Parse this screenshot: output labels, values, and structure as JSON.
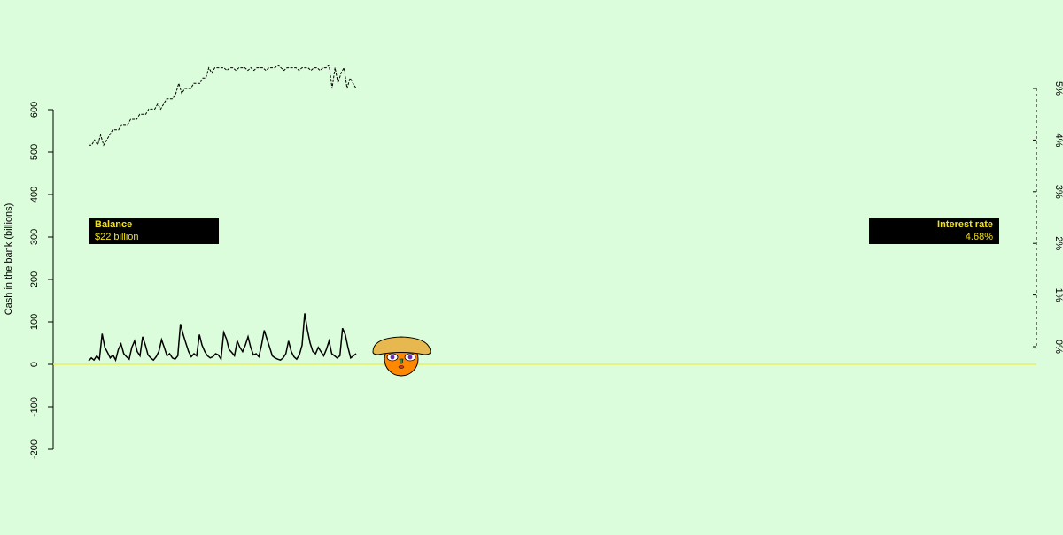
{
  "chart_data": {
    "type": "line",
    "ylabel": "Cash in the bank (billions)",
    "ylim": [
      -200,
      600
    ],
    "yticks": [
      -200,
      -100,
      0,
      100,
      200,
      300,
      400,
      500,
      600
    ],
    "y2lim": [
      0,
      5
    ],
    "y2ticks": [
      "0%",
      "1%",
      "2%",
      "3%",
      "4%",
      "5%"
    ],
    "grid": false,
    "series": [
      {
        "style": "solid",
        "axis": "left",
        "values": [
          8,
          15,
          10,
          20,
          12,
          72,
          40,
          28,
          15,
          22,
          10,
          35,
          48,
          25,
          18,
          12,
          40,
          55,
          30,
          20,
          65,
          45,
          22,
          15,
          10,
          18,
          30,
          58,
          40,
          20,
          25,
          15,
          12,
          20,
          95,
          70,
          50,
          30,
          18,
          25,
          20,
          70,
          45,
          30,
          20,
          15,
          18,
          25,
          22,
          12,
          75,
          60,
          35,
          28,
          20,
          55,
          40,
          30,
          45,
          65,
          40,
          22,
          25,
          18,
          45,
          80,
          60,
          40,
          20,
          15,
          12,
          10,
          15,
          25,
          55,
          30,
          18,
          12,
          22,
          45,
          120,
          80,
          50,
          30,
          25,
          40,
          30,
          20,
          35,
          55,
          25,
          20,
          15,
          20,
          85,
          70,
          40,
          15,
          20,
          25
        ]
      },
      {
        "style": "dashed",
        "axis": "right",
        "values": [
          3.9,
          3.9,
          4.0,
          3.9,
          4.1,
          3.9,
          4.0,
          4.1,
          4.2,
          4.2,
          4.2,
          4.3,
          4.3,
          4.3,
          4.4,
          4.4,
          4.4,
          4.5,
          4.5,
          4.5,
          4.6,
          4.6,
          4.6,
          4.7,
          4.6,
          4.7,
          4.8,
          4.8,
          4.8,
          4.9,
          5.1,
          4.9,
          5.0,
          5.0,
          5.0,
          5.1,
          5.1,
          5.1,
          5.2,
          5.2,
          5.4,
          5.3,
          5.4,
          5.4,
          5.4,
          5.4,
          5.35,
          5.4,
          5.4,
          5.35,
          5.4,
          5.4,
          5.4,
          5.35,
          5.4,
          5.35,
          5.4,
          5.4,
          5.4,
          5.35,
          5.4,
          5.4,
          5.4,
          5.45,
          5.4,
          5.35,
          5.4,
          5.4,
          5.4,
          5.4,
          5.35,
          5.4,
          5.4,
          5.4,
          5.35,
          5.4,
          5.4,
          5.35,
          5.4,
          5.4,
          5.45,
          5.0,
          5.4,
          5.1,
          5.3,
          5.4,
          5.0,
          5.2,
          5.1,
          5.0
        ]
      }
    ]
  },
  "hud": {
    "balance": {
      "title": "Balance",
      "value": "$22 billion"
    },
    "rate": {
      "title": "Interest rate",
      "value": "4.68%"
    }
  },
  "character": {
    "icon": "banker-face-icon",
    "skin": "#ff8800",
    "hat": "#e8b850",
    "eyes": "#6a2eb3"
  },
  "colors": {
    "background": "#dcfddc",
    "zero_line": "#e8f060",
    "hud_bg": "#000000",
    "hud_text": "#f1e21c"
  }
}
